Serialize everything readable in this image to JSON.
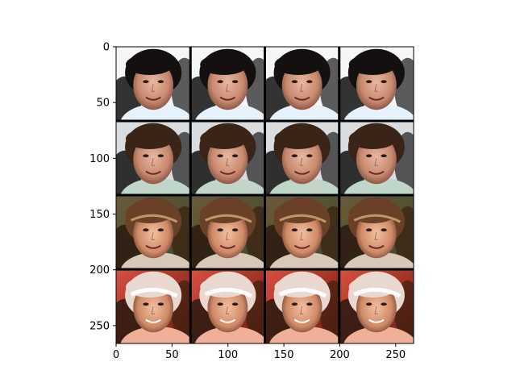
{
  "figure": {
    "x_ticks": [
      "0",
      "50",
      "100",
      "150",
      "200",
      "250"
    ],
    "y_ticks": [
      "0",
      "50",
      "100",
      "150",
      "200",
      "250"
    ],
    "grid": {
      "rows": 4,
      "cols": 4,
      "description_hidden": true
    },
    "colors": {
      "frame": "#000000",
      "separator": "#000000",
      "background": "#ffffff"
    }
  },
  "chart_data": {
    "type": "image-grid",
    "grid": {
      "rows": 4,
      "cols": 4
    },
    "x_ticks": [
      0,
      50,
      100,
      150,
      200,
      250
    ],
    "y_ticks": [
      0,
      50,
      100,
      150,
      200,
      250
    ],
    "xlim": [
      0,
      266
    ],
    "ylim": [
      266,
      0
    ]
  }
}
